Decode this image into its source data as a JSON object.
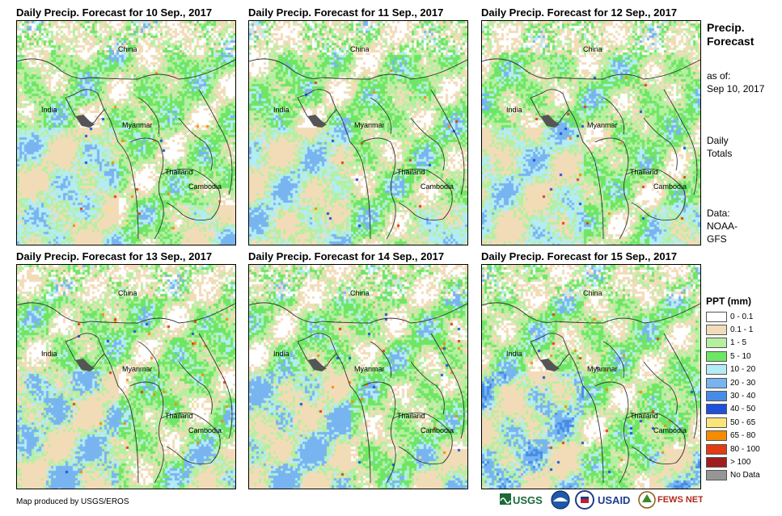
{
  "panels": [
    {
      "title": "Daily Precip. Forecast for 10 Sep., 2017",
      "day_index": 0
    },
    {
      "title": "Daily Precip. Forecast for 11 Sep., 2017",
      "day_index": 1
    },
    {
      "title": "Daily Precip. Forecast for 12 Sep., 2017",
      "day_index": 2
    },
    {
      "title": "Daily Precip. Forecast for 13 Sep., 2017",
      "day_index": 3
    },
    {
      "title": "Daily Precip. Forecast for 14 Sep., 2017",
      "day_index": 4
    },
    {
      "title": "Daily Precip. Forecast for 15 Sep., 2017",
      "day_index": 5
    }
  ],
  "place_labels": {
    "china": "China",
    "india": "India",
    "myanmar": "Myanmar",
    "thailand": "Thailand",
    "cambodia": "Cambodia"
  },
  "sidebar": {
    "title_line1": "Precip.",
    "title_line2": "Forecast",
    "asof_line1": "as of:",
    "asof_line2": "Sep 10, 2017",
    "totals_line1": "Daily",
    "totals_line2": "Totals",
    "data_line1": "Data:",
    "data_line2": "NOAA-",
    "data_line3": "GFS"
  },
  "legend": {
    "title": "PPT (mm)",
    "items": [
      {
        "label": "0 - 0.1",
        "color": "#ffffff"
      },
      {
        "label": "0.1 - 1",
        "color": "#f2dcb8"
      },
      {
        "label": "1 - 5",
        "color": "#b4f0a0"
      },
      {
        "label": "5 - 10",
        "color": "#6ee664"
      },
      {
        "label": "10 - 20",
        "color": "#b4ecf5"
      },
      {
        "label": "20 - 30",
        "color": "#78b4f0"
      },
      {
        "label": "30 - 40",
        "color": "#468ce6"
      },
      {
        "label": "40 - 50",
        "color": "#1e50dc"
      },
      {
        "label": "50 - 65",
        "color": "#fae678"
      },
      {
        "label": "65 - 80",
        "color": "#f58c00"
      },
      {
        "label": "80 - 100",
        "color": "#e13c14"
      },
      {
        "label": "> 100",
        "color": "#a01e1e"
      },
      {
        "label": "No Data",
        "color": "#969696"
      }
    ]
  },
  "credit": "Map produced by USGS/EROS",
  "logos": {
    "usgs": "USGS",
    "usaid": "USAID",
    "fewsnet": "FEWS NET"
  }
}
